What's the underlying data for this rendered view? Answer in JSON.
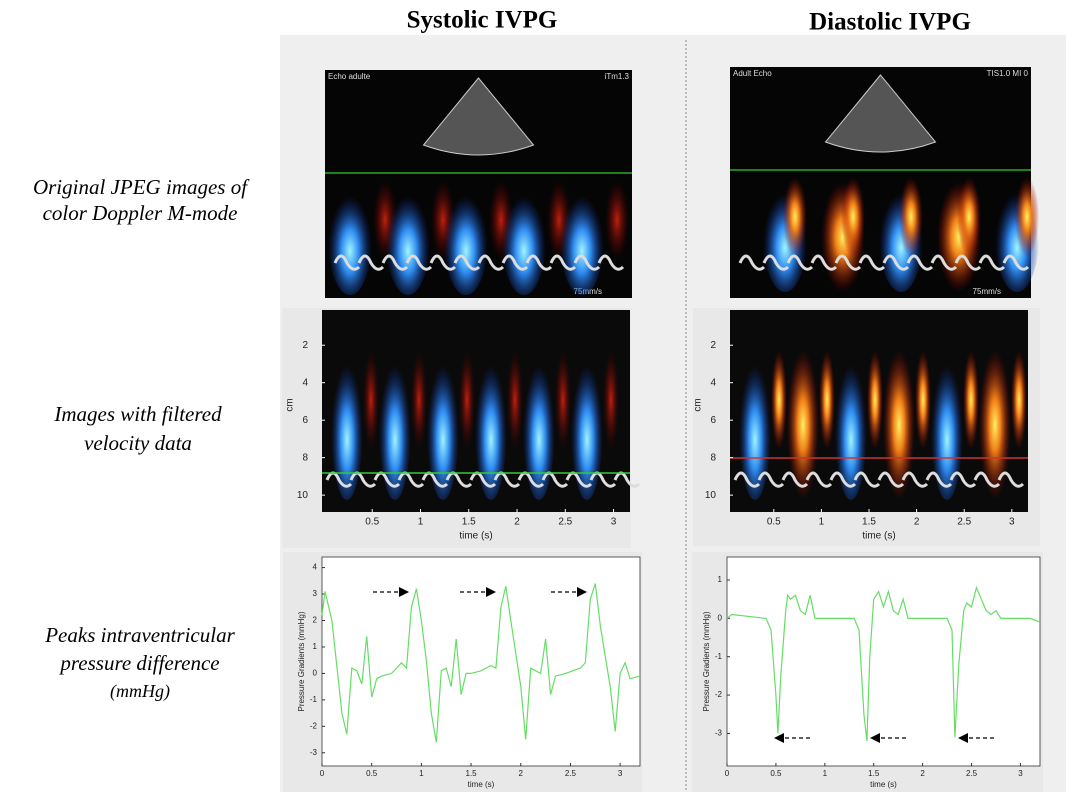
{
  "columns": [
    "Systolic IVPG",
    "Diastolic IVPG"
  ],
  "rows": [
    [
      "Original JPEG images of",
      "color Doppler M-mode"
    ],
    [
      "Images with filtered",
      "velocity data"
    ],
    [
      "Peaks intraventricular",
      "pressure difference",
      "(mmHg)"
    ]
  ],
  "echo_panels": [
    {
      "top_left": "Echo adulte",
      "top_right": "iTm1.3",
      "speed": "75mm/s"
    },
    {
      "top_left": "Adult Echo",
      "top_right": "TIS1.0  MI 0",
      "speed": "75mm/s"
    }
  ],
  "velocity_panels": [
    {
      "xlabel": "time (s)",
      "ylabel": "cm",
      "xlim": [
        -0.02,
        3.17
      ],
      "ylim": [
        0.12,
        10.9
      ],
      "xticks": [
        0.5,
        1,
        1.5,
        2,
        2.5,
        3
      ],
      "yticks": [
        2,
        4,
        6,
        8,
        10
      ]
    },
    {
      "xlabel": "time (s)",
      "ylabel": "cm",
      "xlim": [
        0.04,
        3.17
      ],
      "ylim": [
        0.12,
        10.9
      ],
      "xticks": [
        0.5,
        1,
        1.5,
        2,
        2.5,
        3
      ],
      "yticks": [
        2,
        4,
        6,
        8,
        10
      ]
    }
  ],
  "chart_data": [
    {
      "type": "line",
      "xlabel": "time (s)",
      "ylabel": "Pressure Gradients (mmHg)",
      "color": "#66dd66",
      "xlim": [
        0,
        3.2
      ],
      "ylim": [
        -3.5,
        4.4
      ],
      "xticks": [
        0,
        0.5,
        1,
        1.5,
        2,
        2.5,
        3
      ],
      "yticks": [
        -3,
        -2,
        -1,
        0,
        1,
        2,
        3,
        4
      ],
      "x": [
        0,
        0.03,
        0.1,
        0.2,
        0.25,
        0.3,
        0.35,
        0.4,
        0.45,
        0.5,
        0.55,
        0.6,
        0.7,
        0.8,
        0.85,
        0.9,
        0.95,
        1.0,
        1.05,
        1.1,
        1.15,
        1.2,
        1.25,
        1.3,
        1.35,
        1.4,
        1.45,
        1.5,
        1.6,
        1.7,
        1.75,
        1.8,
        1.85,
        1.9,
        2.0,
        2.05,
        2.1,
        2.2,
        2.25,
        2.3,
        2.35,
        2.45,
        2.6,
        2.65,
        2.7,
        2.75,
        2.8,
        2.9,
        2.95,
        3.0,
        3.05,
        3.1,
        3.2
      ],
      "values": [
        2.2,
        3.1,
        2.0,
        -1.5,
        -2.3,
        0.2,
        0.1,
        -0.4,
        1.4,
        -0.9,
        -0.2,
        -0.1,
        0,
        0.4,
        0.2,
        2.5,
        3.2,
        2.0,
        0.5,
        -1.5,
        -2.6,
        0.1,
        0.2,
        -0.5,
        1.3,
        -0.8,
        0,
        0,
        0.1,
        0.3,
        0.2,
        2.5,
        3.3,
        2.0,
        -0.5,
        -2.5,
        0.2,
        0,
        1.3,
        -0.8,
        -0.1,
        0,
        0.2,
        0.4,
        2.8,
        3.4,
        1.8,
        -0.5,
        -2.2,
        0,
        0.4,
        -0.2,
        -0.1
      ]
    },
    {
      "type": "line",
      "xlabel": "time (s)",
      "ylabel": "Pressure Gradients (mmHg)",
      "color": "#66dd66",
      "xlim": [
        0,
        3.2
      ],
      "ylim": [
        -3.85,
        1.6
      ],
      "xticks": [
        0,
        0.5,
        1,
        1.5,
        2,
        2.5,
        3
      ],
      "yticks": [
        -3,
        -2,
        -1,
        0,
        1
      ],
      "x": [
        0,
        0.05,
        0.4,
        0.45,
        0.5,
        0.52,
        0.55,
        0.6,
        0.62,
        0.65,
        0.7,
        0.75,
        0.8,
        0.85,
        0.9,
        1.3,
        1.35,
        1.4,
        1.43,
        1.46,
        1.5,
        1.55,
        1.6,
        1.65,
        1.7,
        1.75,
        1.8,
        1.85,
        2.25,
        2.3,
        2.33,
        2.37,
        2.42,
        2.45,
        2.5,
        2.55,
        2.6,
        2.65,
        2.7,
        2.75,
        2.8,
        3.1,
        3.2
      ],
      "values": [
        0,
        0.1,
        0,
        -0.3,
        -2.0,
        -3.0,
        -1.5,
        0.2,
        0.6,
        0.5,
        0.6,
        0.2,
        0.1,
        0.6,
        0,
        0,
        -0.3,
        -2.5,
        -3.2,
        -1.0,
        0.5,
        0.7,
        0.3,
        0.7,
        0.2,
        0.1,
        0.5,
        0,
        0,
        -0.3,
        -3.1,
        -1.2,
        0.2,
        0.4,
        0.3,
        0.8,
        0.5,
        0.2,
        0.1,
        0.2,
        0,
        0,
        -0.1
      ]
    }
  ]
}
